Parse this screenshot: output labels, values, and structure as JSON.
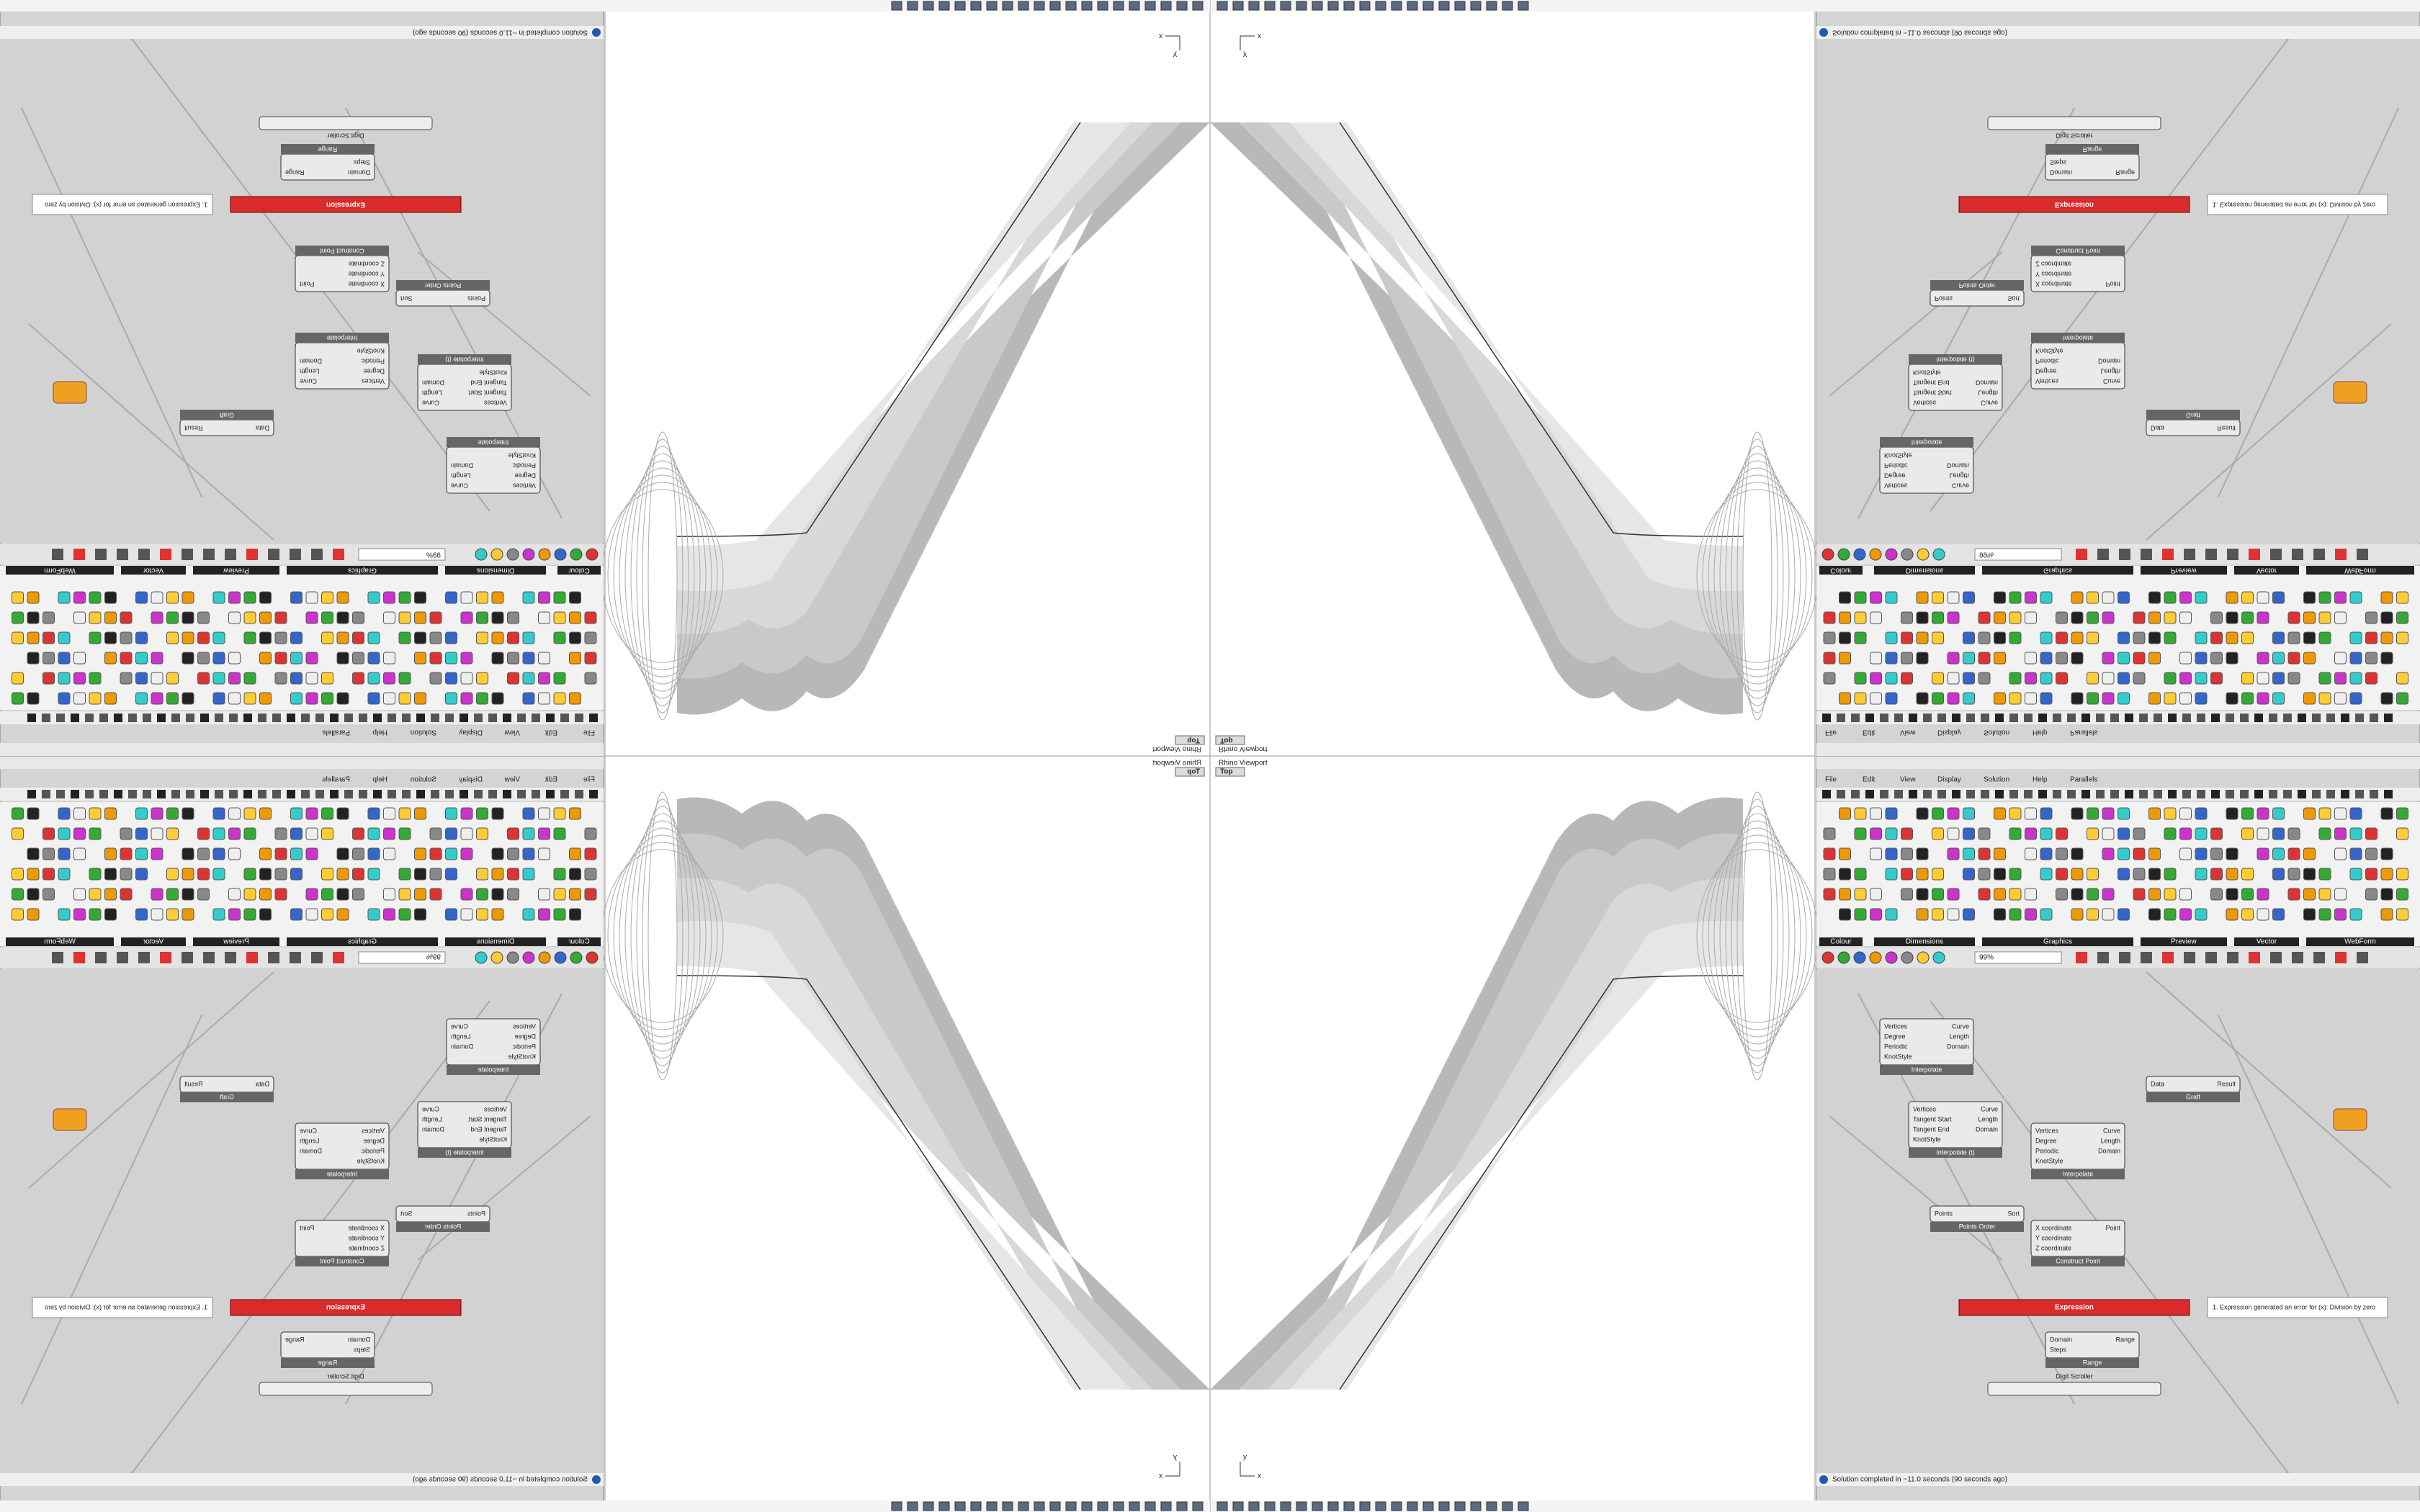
{
  "viewport": {
    "title": "Rhino Viewport",
    "view": "Top",
    "axis_x": "x",
    "axis_y": "y"
  },
  "grasshopper": {
    "menu": [
      "File",
      "Edit",
      "View",
      "Display",
      "Solution",
      "Help",
      "Parallels"
    ],
    "palette_groups": [
      "Colour",
      "Dimensions",
      "Graphics",
      "Preview",
      "Vector",
      "WebForm"
    ],
    "zoom": "99%",
    "components": [
      {
        "title": "Interpolate",
        "inputs": [
          "Vertices",
          "Degree",
          "Periodic",
          "KnotStyle"
        ],
        "outputs": [
          "Curve",
          "Length",
          "Domain"
        ]
      },
      {
        "title": "Interpolate (t)",
        "inputs": [
          "Vertices",
          "Tangent Start",
          "Tangent End",
          "KnotStyle"
        ],
        "outputs": [
          "Curve",
          "Length",
          "Domain"
        ]
      },
      {
        "title": "Interpolate",
        "inputs": [
          "Vertices",
          "Degree",
          "Periodic",
          "KnotStyle"
        ],
        "outputs": [
          "Curve",
          "Length",
          "Domain"
        ]
      },
      {
        "title": "Points Order",
        "inputs": [
          "Points"
        ],
        "outputs": [
          "Sort"
        ]
      },
      {
        "title": "Construct Point",
        "inputs": [
          "X coordinate",
          "Y coordinate",
          "Z coordinate"
        ],
        "outputs": [
          "Point"
        ]
      },
      {
        "title": "Range",
        "inputs": [
          "Domain",
          "Steps"
        ],
        "outputs": [
          "Range"
        ]
      },
      {
        "title": "Graft",
        "inputs": [
          "Data"
        ],
        "outputs": [
          "Result"
        ]
      }
    ],
    "expression": "Expression",
    "error": "1. Expression generated an error for (x): Division by zero",
    "slider": "Digit Scroller",
    "status": "Solution completed in ~11.0 seconds (90 seconds ago)"
  }
}
